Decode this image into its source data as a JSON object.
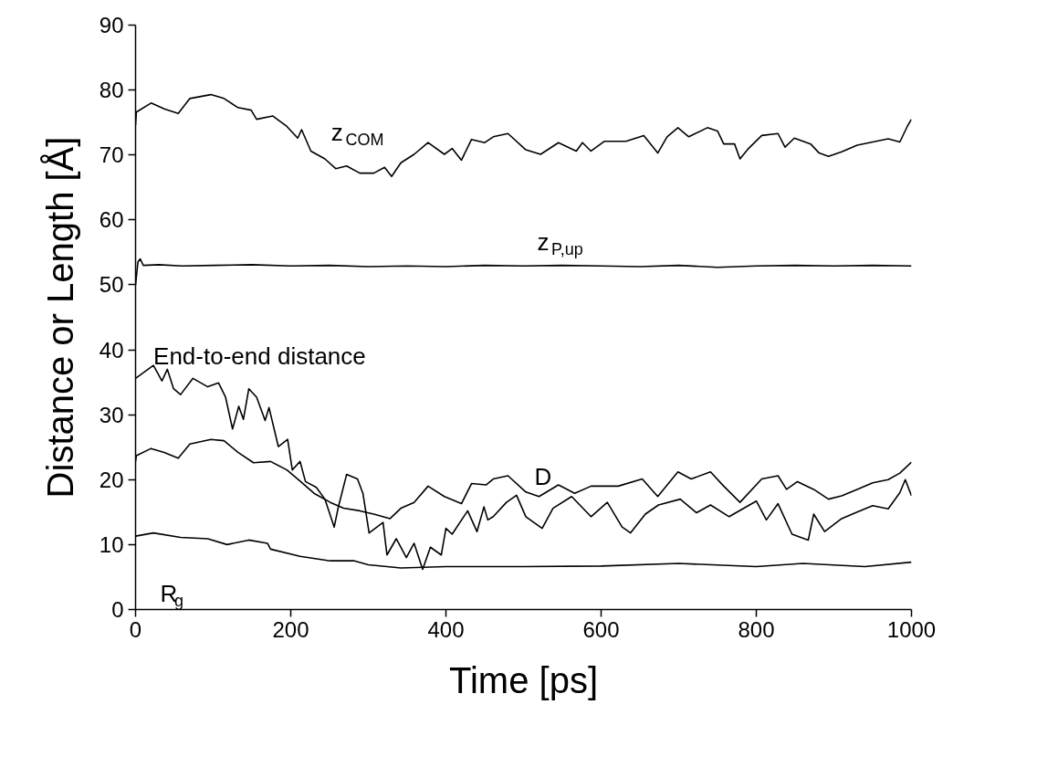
{
  "chart_data": {
    "type": "line",
    "xlabel": "Time [ps]",
    "ylabel": "Distance or Length [Å]",
    "xlim": [
      0,
      1000
    ],
    "ylim": [
      0,
      90
    ],
    "xticks": [
      0,
      200,
      400,
      600,
      800,
      1000
    ],
    "yticks": [
      0,
      10,
      20,
      30,
      40,
      50,
      60,
      70,
      80,
      90
    ],
    "grid": false,
    "series": [
      {
        "name": "z$_{COM}$",
        "color": "#000000",
        "x": [
          0,
          1,
          20,
          37,
          55,
          70,
          97,
          114,
          132,
          149,
          156,
          177,
          195,
          209,
          214,
          226,
          244,
          258,
          272,
          289,
          307,
          321,
          330,
          342,
          359,
          377,
          398,
          408,
          420,
          433,
          450,
          461,
          480,
          503,
          522,
          545,
          568,
          576,
          587,
          604,
          632,
          655,
          673,
          685,
          699,
          713,
          737,
          750,
          758,
          772,
          779,
          790,
          807,
          828,
          837,
          849,
          870,
          881,
          893,
          910,
          930,
          950,
          970,
          985,
          995,
          1000
        ],
        "values": [
          74.6,
          76.6,
          78.0,
          77.1,
          76.4,
          78.7,
          79.3,
          78.7,
          77.3,
          76.9,
          75.5,
          76.0,
          74.4,
          72.6,
          73.9,
          70.6,
          69.4,
          67.9,
          68.3,
          67.2,
          67.2,
          68.1,
          66.7,
          68.8,
          70.1,
          71.9,
          70.1,
          71.0,
          69.2,
          72.4,
          71.9,
          72.8,
          73.3,
          70.8,
          70.1,
          71.9,
          70.6,
          71.9,
          70.6,
          72.1,
          72.1,
          73.0,
          70.3,
          72.8,
          74.2,
          72.8,
          74.2,
          73.7,
          71.7,
          71.7,
          69.4,
          71.0,
          73.0,
          73.3,
          71.2,
          72.6,
          71.7,
          70.3,
          69.8,
          70.5,
          71.5,
          72.0,
          72.5,
          72.0,
          74.5,
          75.5
        ]
      },
      {
        "name": "z$_{P,up}$",
        "color": "#000000",
        "x": [
          0,
          3,
          6,
          10,
          30,
          60,
          100,
          150,
          200,
          250,
          300,
          350,
          400,
          450,
          500,
          550,
          600,
          650,
          700,
          750,
          800,
          850,
          900,
          950,
          1000
        ],
        "values": [
          50.0,
          53.5,
          54.0,
          53.0,
          53.1,
          52.9,
          53.0,
          53.1,
          52.9,
          53.0,
          52.8,
          52.9,
          52.8,
          53.0,
          52.9,
          53.0,
          52.9,
          52.8,
          53.0,
          52.7,
          52.9,
          53.0,
          52.9,
          53.0,
          52.9
        ]
      },
      {
        "name": "D",
        "color": "#000000",
        "x": [
          0,
          1,
          20,
          37,
          55,
          70,
          97,
          114,
          132,
          152,
          174,
          195,
          209,
          230,
          251,
          268,
          289,
          307,
          328,
          342,
          359,
          377,
          398,
          420,
          433,
          452,
          461,
          480,
          503,
          520,
          545,
          566,
          587,
          622,
          653,
          673,
          699,
          716,
          741,
          758,
          779,
          807,
          828,
          839,
          853,
          874,
          893,
          910,
          930,
          950,
          970,
          985,
          1000
        ],
        "values": [
          22.8,
          23.7,
          24.8,
          24.2,
          23.3,
          25.5,
          26.2,
          26.0,
          24.2,
          22.6,
          22.8,
          21.5,
          20.1,
          17.9,
          16.5,
          15.6,
          15.2,
          14.7,
          14.0,
          15.6,
          16.5,
          19.0,
          17.4,
          16.3,
          19.4,
          19.2,
          20.1,
          20.6,
          18.1,
          17.4,
          19.2,
          17.9,
          19.0,
          19.0,
          20.1,
          17.4,
          21.2,
          20.1,
          21.2,
          19.0,
          16.5,
          20.1,
          20.6,
          18.5,
          19.7,
          18.5,
          17.0,
          17.5,
          18.5,
          19.5,
          20.0,
          21.0,
          22.7
        ]
      },
      {
        "name": "End-to-end distance",
        "color": "#000000",
        "x": [
          0,
          23,
          34,
          41,
          49,
          58,
          74,
          93,
          107,
          116,
          125,
          133,
          139,
          146,
          156,
          167,
          172,
          184,
          196,
          202,
          212,
          219,
          233,
          244,
          256,
          261,
          272,
          286,
          293,
          301,
          319,
          324,
          336,
          349,
          359,
          370,
          380,
          394,
          400,
          408,
          428,
          440,
          449,
          454,
          461,
          478,
          491,
          503,
          524,
          538,
          562,
          587,
          608,
          627,
          638,
          657,
          674,
          702,
          723,
          741,
          765,
          800,
          813,
          828,
          846,
          867,
          874,
          888,
          910,
          930,
          950,
          970,
          985,
          992,
          1000
        ],
        "values": [
          35.6,
          37.6,
          35.2,
          37.0,
          34.0,
          33.1,
          35.6,
          34.3,
          34.9,
          32.7,
          27.8,
          31.3,
          29.3,
          34.0,
          32.7,
          29.1,
          31.1,
          25.1,
          26.2,
          21.5,
          22.8,
          19.7,
          18.8,
          17.0,
          12.7,
          15.6,
          20.8,
          20.1,
          17.9,
          11.8,
          13.4,
          8.4,
          10.9,
          8.0,
          10.2,
          6.2,
          9.6,
          8.4,
          12.5,
          11.6,
          15.2,
          12.0,
          15.8,
          13.8,
          14.3,
          16.5,
          17.6,
          14.3,
          12.5,
          15.6,
          17.4,
          14.3,
          16.5,
          12.7,
          11.8,
          14.7,
          16.1,
          17.0,
          14.9,
          16.1,
          14.3,
          16.7,
          13.8,
          16.3,
          11.6,
          10.7,
          14.7,
          12.0,
          14.0,
          15.0,
          16.0,
          15.5,
          18.0,
          20.0,
          17.5
        ]
      },
      {
        "name": "R$_{g}$",
        "color": "#000000",
        "x": [
          0,
          23,
          58,
          93,
          118,
          146,
          170,
          174,
          212,
          251,
          282,
          300,
          342,
          400,
          500,
          600,
          700,
          800,
          860,
          940,
          1000
        ],
        "values": [
          11.3,
          11.8,
          11.1,
          10.9,
          10.0,
          10.7,
          10.2,
          9.3,
          8.2,
          7.5,
          7.5,
          6.9,
          6.4,
          6.6,
          6.6,
          6.7,
          7.1,
          6.6,
          7.1,
          6.6,
          7.3
        ]
      }
    ]
  }
}
